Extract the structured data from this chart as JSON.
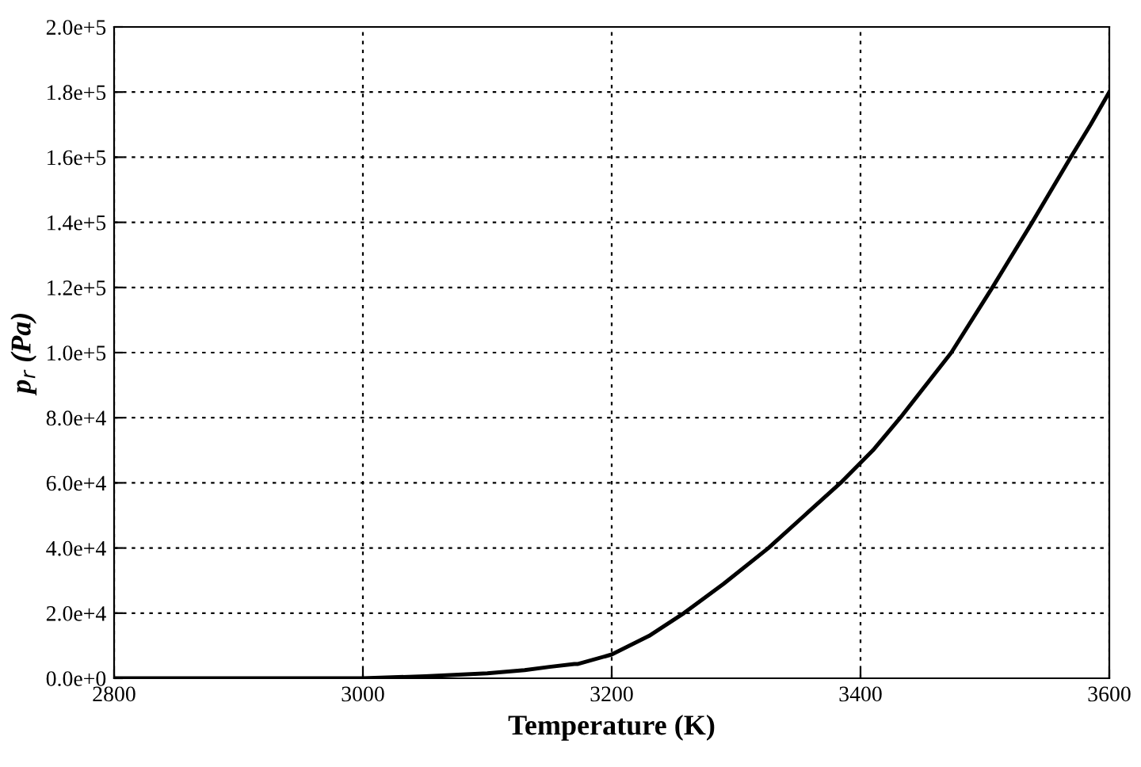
{
  "chart_data": {
    "type": "line",
    "xlabel": "Temperature (K)",
    "ylabel": "p$_{r}$ (Pa)",
    "series": [
      {
        "color": "#000000",
        "x": [
          2800,
          2900,
          3000,
          3050,
          3100,
          3130,
          3150,
          3170,
          3173,
          3200,
          3230,
          3258,
          3290,
          3326,
          3355,
          3384,
          3410,
          3432,
          3473,
          3506,
          3538,
          3569,
          3585,
          3600
        ],
        "values": [
          0,
          0,
          0,
          600,
          1500,
          2500,
          3500,
          4400,
          4400,
          7300,
          13000,
          20000,
          29000,
          40000,
          50000,
          60000,
          70000,
          80000,
          100000,
          120000,
          140000,
          160000,
          170000,
          180000
        ]
      }
    ],
    "xlim": [
      2800,
      3600
    ],
    "xticks": [
      2800,
      3000,
      3200,
      3400,
      3600
    ],
    "ylim": [
      0,
      200000
    ],
    "yticks": [
      {
        "value": 0,
        "label": "0.0e+0"
      },
      {
        "value": 20000,
        "label": "2.0e+4"
      },
      {
        "value": 40000,
        "label": "4.0e+4"
      },
      {
        "value": 60000,
        "label": "6.0e+4"
      },
      {
        "value": 80000,
        "label": "8.0e+4"
      },
      {
        "value": 100000,
        "label": "1.0e+5"
      },
      {
        "value": 120000,
        "label": "1.2e+5"
      },
      {
        "value": 140000,
        "label": "1.4e+5"
      },
      {
        "value": 160000,
        "label": "1.6e+5"
      },
      {
        "value": 180000,
        "label": "1.8e+5"
      },
      {
        "value": 200000,
        "label": "2.0e+5"
      }
    ],
    "grid": true,
    "marker": "none",
    "line_style": "solid"
  }
}
